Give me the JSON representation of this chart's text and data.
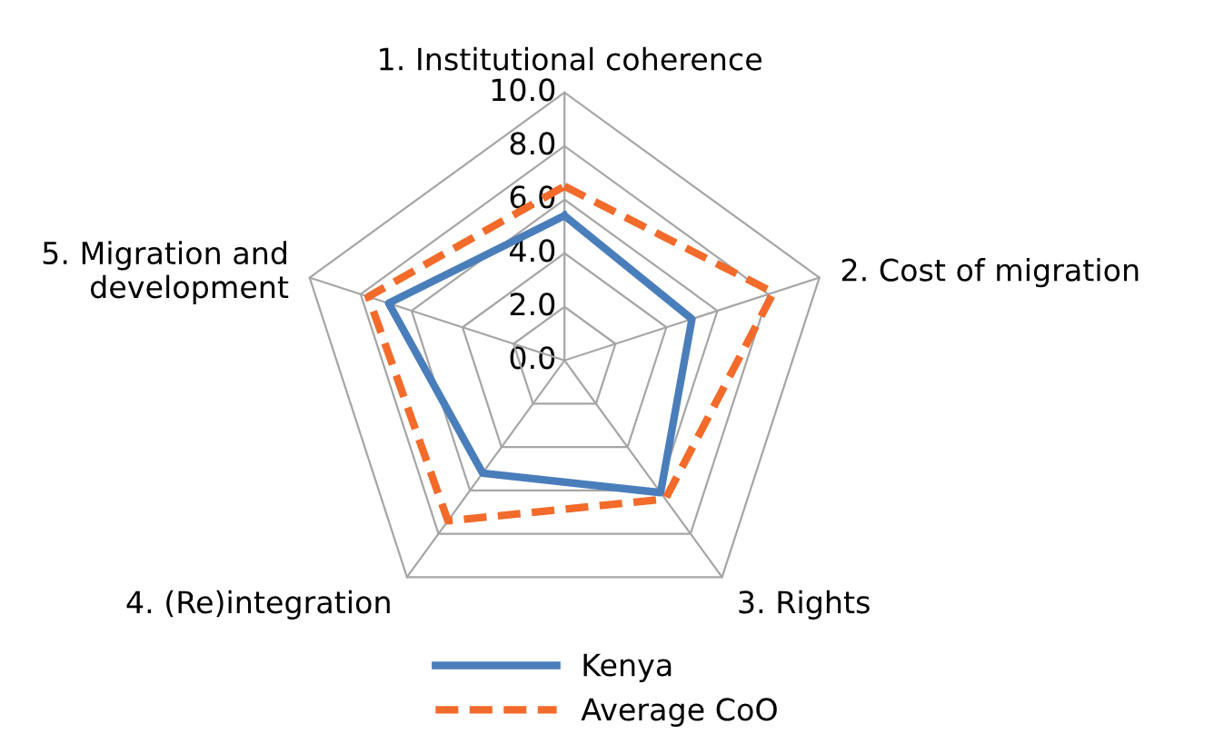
{
  "chart_data": {
    "type": "radar",
    "categories": [
      "1. Institutional coherence",
      "2. Cost of migration",
      "3. Rights",
      "4. (Re)integration",
      "5. Migration and\ndevelopment"
    ],
    "ylim": [
      0,
      10
    ],
    "yticks": [
      {
        "value": 0,
        "label": "0.0"
      },
      {
        "value": 2,
        "label": "2.0"
      },
      {
        "value": 4,
        "label": "4.0"
      },
      {
        "value": 6,
        "label": "6.0"
      },
      {
        "value": 8,
        "label": "8.0"
      },
      {
        "value": 10,
        "label": "10.0"
      }
    ],
    "grid": true,
    "legend": "bottom",
    "series": [
      {
        "name": "Kenya",
        "color": "#4a7ebb",
        "line_style": "solid",
        "values": [
          5.4,
          5.0,
          6.1,
          5.2,
          6.9
        ]
      },
      {
        "name": "Average CoO",
        "color": "#f26b2a",
        "line_style": "dashed",
        "values": [
          6.5,
          8.2,
          6.4,
          7.4,
          7.7
        ]
      }
    ]
  }
}
